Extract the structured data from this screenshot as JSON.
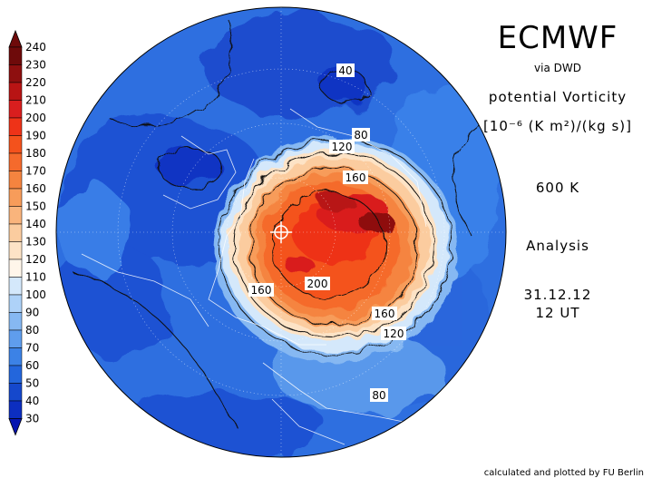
{
  "header": {
    "title": "ECMWF",
    "subtitle": "via DWD",
    "quantity": "potential Vorticity",
    "units": "[10⁻⁶ (K m²)/(kg s)]",
    "level": "600 K",
    "analysis_type": "Analysis",
    "date": "31.12.12",
    "time": "12 UT"
  },
  "footer": {
    "credit": "calculated and plotted by FU Berlin"
  },
  "colorbar": {
    "levels": [
      {
        "value": "240",
        "color": "#6e0a0a"
      },
      {
        "value": "230",
        "color": "#8e0f0f"
      },
      {
        "value": "220",
        "color": "#b81414"
      },
      {
        "value": "210",
        "color": "#d91e1e"
      },
      {
        "value": "200",
        "color": "#ee3318"
      },
      {
        "value": "190",
        "color": "#f4521c"
      },
      {
        "value": "180",
        "color": "#f56a2c"
      },
      {
        "value": "170",
        "color": "#f5843f"
      },
      {
        "value": "160",
        "color": "#f79c5a"
      },
      {
        "value": "150",
        "color": "#f9b47c"
      },
      {
        "value": "140",
        "color": "#fbcc9f"
      },
      {
        "value": "130",
        "color": "#fde3c6"
      },
      {
        "value": "120",
        "color": "#fff6ea"
      },
      {
        "value": "110",
        "color": "#d4e8fb"
      },
      {
        "value": "100",
        "color": "#aed2f8"
      },
      {
        "value": "90",
        "color": "#86b8f2"
      },
      {
        "value": "80",
        "color": "#5f9ded"
      },
      {
        "value": "70",
        "color": "#3c82e6"
      },
      {
        "value": "60",
        "color": "#2366dc"
      },
      {
        "value": "50",
        "color": "#1548cc"
      },
      {
        "value": "40",
        "color": "#0c2ec0"
      },
      {
        "value": "30",
        "color": "#0514b0"
      }
    ]
  },
  "contour_labels": [
    "40",
    "80",
    "120",
    "160",
    "200",
    "160",
    "160",
    "120",
    "80"
  ]
}
